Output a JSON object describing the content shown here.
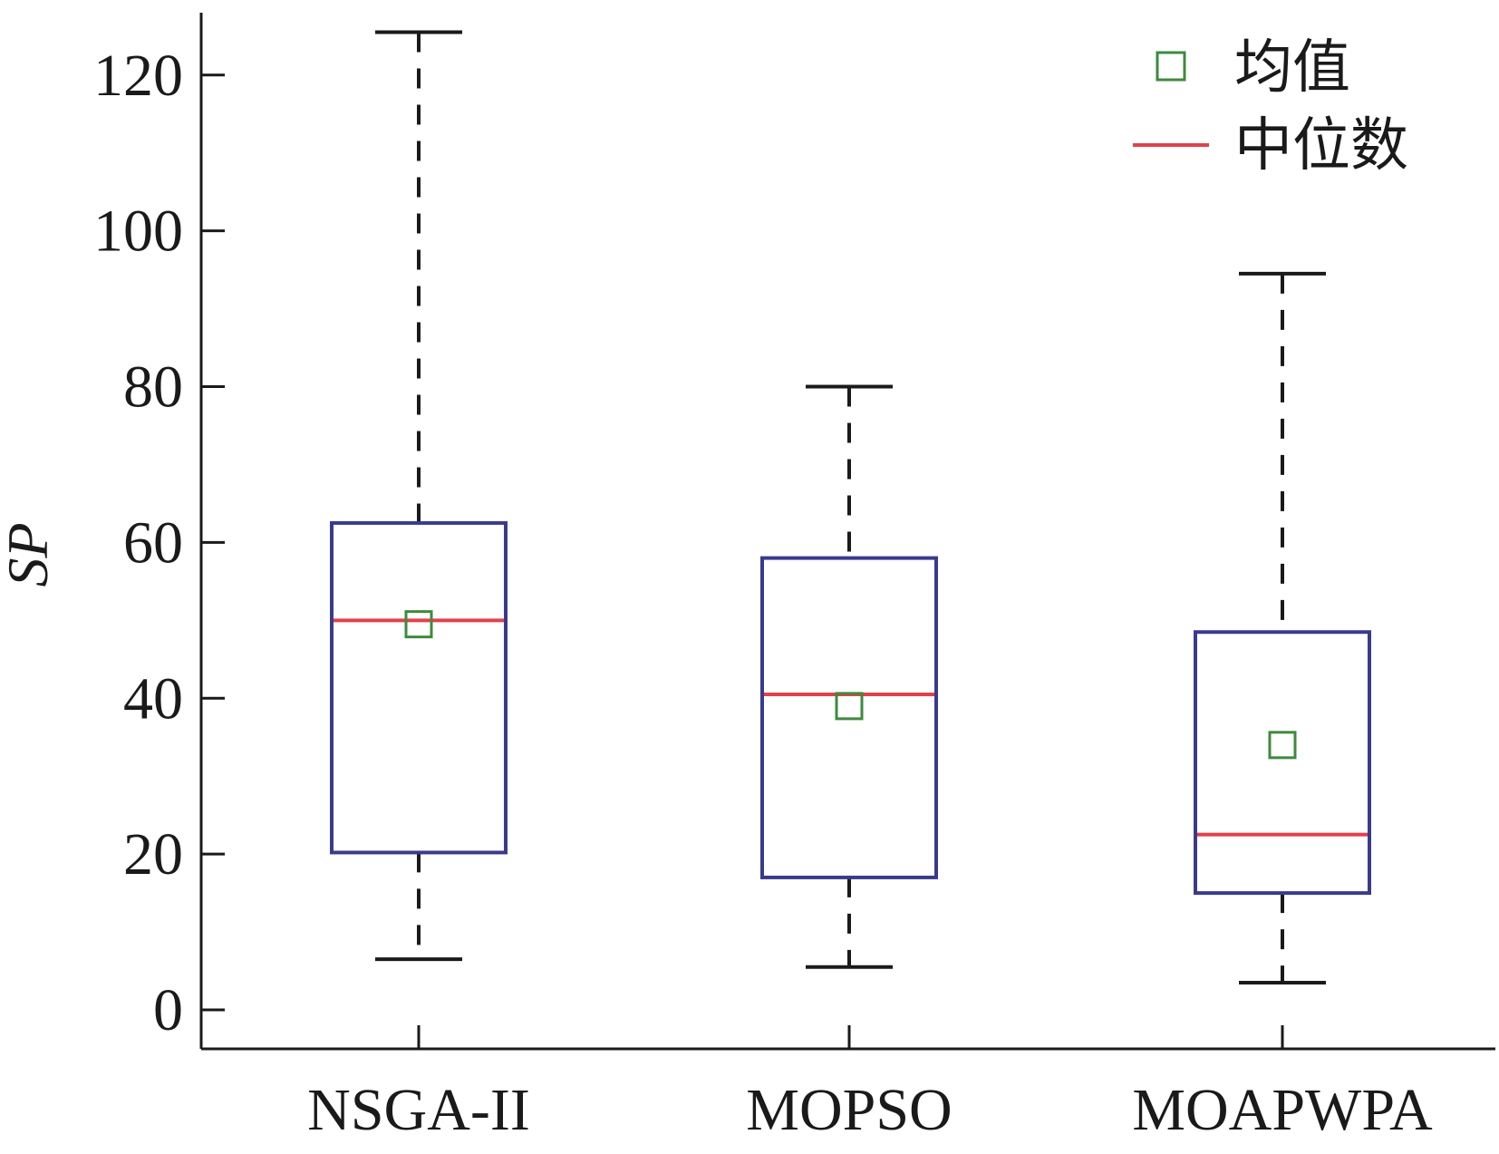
{
  "chart_data": {
    "type": "boxplot",
    "ylabel": "SP",
    "xlabel": "",
    "ylim": [
      -5,
      128
    ],
    "yticks": [
      "0",
      "20",
      "40",
      "60",
      "80",
      "100",
      "120"
    ],
    "categories": [
      "NSGA-II",
      "MOPSO",
      "MOAPWPA"
    ],
    "boxes": [
      {
        "whisker_low": 6.5,
        "q1": 20.2,
        "median": 50.0,
        "q3": 62.5,
        "whisker_high": 125.5,
        "mean": 49.5
      },
      {
        "whisker_low": 5.5,
        "q1": 17.0,
        "median": 40.5,
        "q3": 58.0,
        "whisker_high": 80.0,
        "mean": 39.0
      },
      {
        "whisker_low": 3.5,
        "q1": 15.0,
        "median": 22.5,
        "q3": 48.5,
        "whisker_high": 94.5,
        "mean": 34.0
      }
    ],
    "legend": [
      {
        "key": "mean",
        "label": "均值",
        "marker": "square"
      },
      {
        "key": "median",
        "label": "中位数",
        "marker": "line"
      }
    ],
    "legend_position": "top-right",
    "grid": false
  },
  "colors": {
    "box": "#3a3a8c",
    "median": "#e0414a",
    "mean": "#3d8a3d",
    "whisker": "#1a1a1a",
    "axis": "#1a1a1a"
  }
}
